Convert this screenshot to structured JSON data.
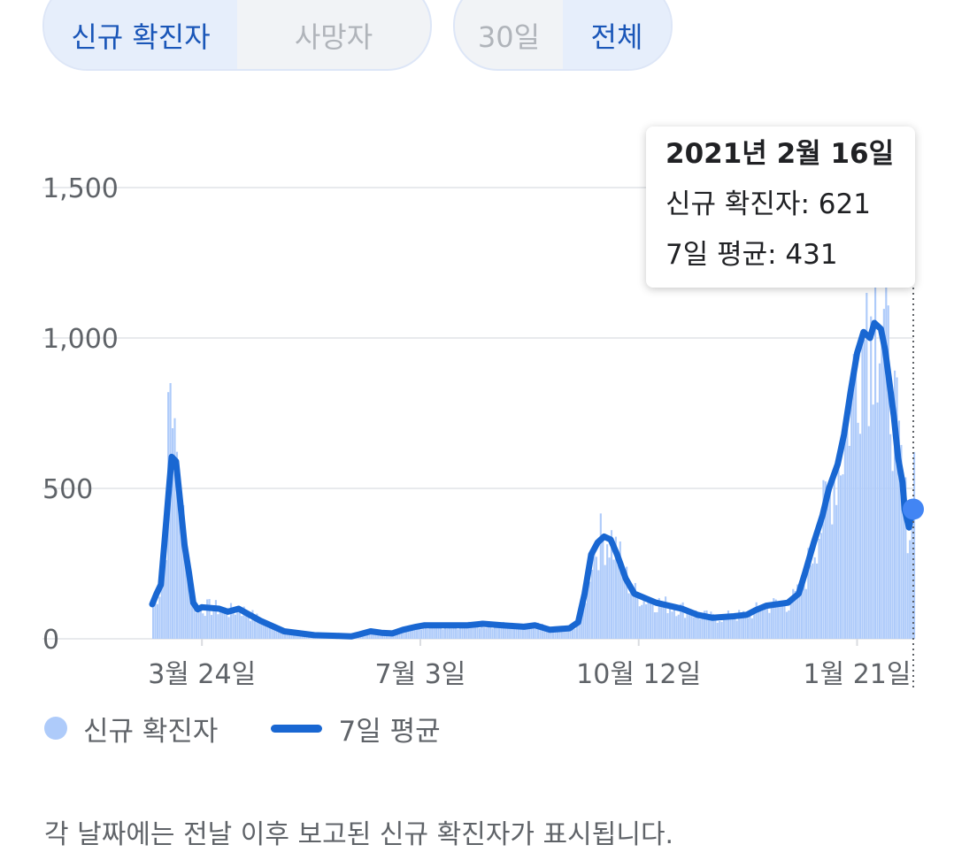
{
  "controls": {
    "metric_tabs": [
      {
        "label": "신규 확진자",
        "active": true
      },
      {
        "label": "사망자",
        "active": false
      }
    ],
    "range_tabs": [
      {
        "label": "30일",
        "active": false
      },
      {
        "label": "전체",
        "active": true
      }
    ]
  },
  "tooltip": {
    "date": "2021년 2월 16일",
    "new_cases_label": "신규 확진자: 621",
    "avg_label": "7일 평균: 431"
  },
  "legend": {
    "bars_label": "신규 확진자",
    "line_label": "7일 평균"
  },
  "footnote": "각 날짜에는 전날 이후 보고된 신규 확진자가 표시됩니다.",
  "colors": {
    "bars": "#aecbfa",
    "line": "#1967d2",
    "grid": "#e8eaed",
    "marker": "#4285f4"
  },
  "chart_data": {
    "type": "bar",
    "combo": "bars + 7-day average line",
    "x_tick_labels": [
      "3월 24일",
      "7월 3일",
      "10월 12일",
      "1월 21일"
    ],
    "y_tick_labels": [
      "0",
      "500",
      "1,000",
      "1,500"
    ],
    "ylim": [
      0,
      1500
    ],
    "grid": true,
    "legend_position": "bottom-left",
    "x_start": "2020-03-01",
    "x_end": "2021-02-16",
    "series": [
      {
        "name": "7일 평균",
        "type": "line",
        "points": [
          [
            "2020-03-01",
            115
          ],
          [
            "2020-03-03",
            150
          ],
          [
            "2020-03-05",
            180
          ],
          [
            "2020-03-07",
            350
          ],
          [
            "2020-03-09",
            520
          ],
          [
            "2020-03-10",
            605
          ],
          [
            "2020-03-12",
            590
          ],
          [
            "2020-03-14",
            450
          ],
          [
            "2020-03-16",
            310
          ],
          [
            "2020-03-18",
            220
          ],
          [
            "2020-03-20",
            120
          ],
          [
            "2020-03-22",
            98
          ],
          [
            "2020-03-24",
            105
          ],
          [
            "2020-04-01",
            100
          ],
          [
            "2020-04-05",
            90
          ],
          [
            "2020-04-10",
            100
          ],
          [
            "2020-04-15",
            80
          ],
          [
            "2020-04-20",
            60
          ],
          [
            "2020-05-01",
            25
          ],
          [
            "2020-05-15",
            12
          ],
          [
            "2020-05-25",
            10
          ],
          [
            "2020-06-01",
            8
          ],
          [
            "2020-06-05",
            15
          ],
          [
            "2020-06-10",
            25
          ],
          [
            "2020-06-15",
            20
          ],
          [
            "2020-06-20",
            18
          ],
          [
            "2020-06-25",
            30
          ],
          [
            "2020-07-01",
            40
          ],
          [
            "2020-07-05",
            45
          ],
          [
            "2020-07-15",
            45
          ],
          [
            "2020-07-25",
            45
          ],
          [
            "2020-08-01",
            50
          ],
          [
            "2020-08-10",
            45
          ],
          [
            "2020-08-20",
            40
          ],
          [
            "2020-08-25",
            45
          ],
          [
            "2020-09-01",
            30
          ],
          [
            "2020-09-10",
            35
          ],
          [
            "2020-09-14",
            55
          ],
          [
            "2020-09-17",
            150
          ],
          [
            "2020-09-20",
            280
          ],
          [
            "2020-09-23",
            320
          ],
          [
            "2020-09-26",
            340
          ],
          [
            "2020-09-29",
            330
          ],
          [
            "2020-10-02",
            280
          ],
          [
            "2020-10-06",
            200
          ],
          [
            "2020-10-10",
            150
          ],
          [
            "2020-10-20",
            120
          ],
          [
            "2020-11-01",
            100
          ],
          [
            "2020-11-08",
            80
          ],
          [
            "2020-11-15",
            70
          ],
          [
            "2020-11-25",
            75
          ],
          [
            "2020-12-01",
            80
          ],
          [
            "2020-12-05",
            95
          ],
          [
            "2020-12-10",
            110
          ],
          [
            "2020-12-20",
            120
          ],
          [
            "2020-12-25",
            150
          ],
          [
            "2020-12-28",
            220
          ],
          [
            "2021-01-01",
            320
          ],
          [
            "2021-01-05",
            410
          ],
          [
            "2021-01-08",
            500
          ],
          [
            "2021-01-12",
            580
          ],
          [
            "2021-01-15",
            680
          ],
          [
            "2021-01-18",
            820
          ],
          [
            "2021-01-21",
            950
          ],
          [
            "2021-01-24",
            1020
          ],
          [
            "2021-01-27",
            1000
          ],
          [
            "2021-01-29",
            1050
          ],
          [
            "2021-02-01",
            1030
          ],
          [
            "2021-02-03",
            960
          ],
          [
            "2021-02-05",
            850
          ],
          [
            "2021-02-07",
            740
          ],
          [
            "2021-02-09",
            600
          ],
          [
            "2021-02-11",
            520
          ],
          [
            "2021-02-12",
            430
          ],
          [
            "2021-02-14",
            370
          ],
          [
            "2021-02-16",
            431
          ]
        ]
      },
      {
        "name": "신규 확진자",
        "type": "bar",
        "note": "daily bars approximate the 7-day average with day-to-day variation; notable values",
        "points": [
          [
            "2020-03-08",
            820
          ],
          [
            "2020-03-09",
            850
          ],
          [
            "2020-03-10",
            700
          ],
          [
            "2021-01-25",
            1150
          ],
          [
            "2021-01-29",
            1240
          ],
          [
            "2021-02-16",
            621
          ]
        ]
      }
    ]
  }
}
